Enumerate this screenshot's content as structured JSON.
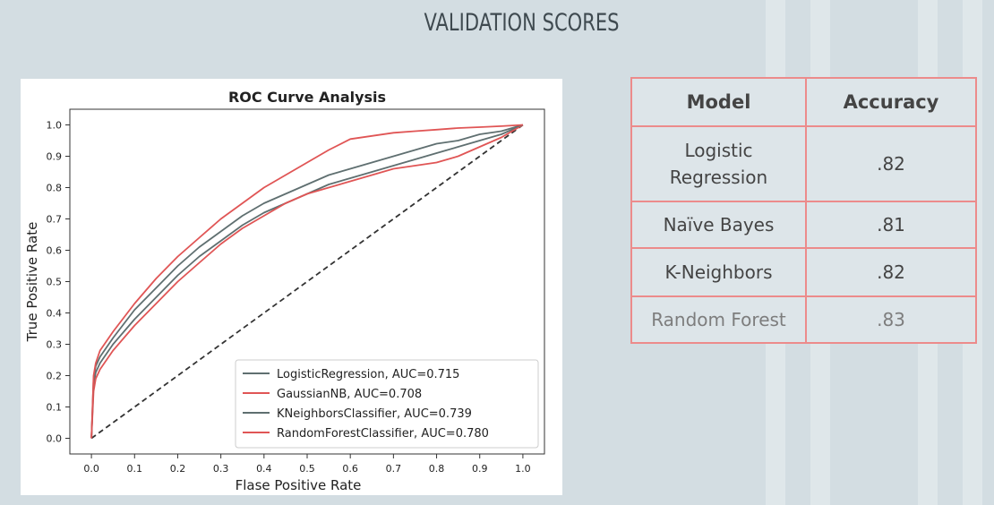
{
  "page": {
    "title": "VALIDATION SCORES"
  },
  "colors": {
    "background": "#d3dde2",
    "table_border": "#ec8b8b",
    "gray_series": "#5f6f70",
    "red_series": "#e05555"
  },
  "chart_data": {
    "type": "line",
    "title": "ROC Curve Analysis",
    "xlabel": "Flase Positive Rate",
    "ylabel": "True Positive Rate",
    "xlim": [
      -0.05,
      1.05
    ],
    "ylim": [
      -0.05,
      1.05
    ],
    "x_ticks": [
      "0.0",
      "0.1",
      "0.2",
      "0.3",
      "0.4",
      "0.5",
      "0.6",
      "0.7",
      "0.8",
      "0.9",
      "1.0"
    ],
    "y_ticks": [
      "0.0",
      "0.1",
      "0.2",
      "0.3",
      "0.4",
      "0.5",
      "0.6",
      "0.7",
      "0.8",
      "0.9",
      "1.0"
    ],
    "grid": false,
    "legend_position": "lower-right",
    "diagonal": {
      "x": [
        0,
        1
      ],
      "y": [
        0,
        1
      ],
      "style": "dashed"
    },
    "series": [
      {
        "name": "LogisticRegression, AUC=0.715",
        "color": "#5f6f70",
        "x": [
          0,
          0.005,
          0.01,
          0.02,
          0.05,
          0.1,
          0.15,
          0.2,
          0.25,
          0.3,
          0.35,
          0.4,
          0.45,
          0.5,
          0.55,
          0.6,
          0.65,
          0.7,
          0.75,
          0.8,
          0.85,
          0.9,
          0.95,
          1.0
        ],
        "y": [
          0,
          0.17,
          0.21,
          0.24,
          0.3,
          0.38,
          0.45,
          0.52,
          0.58,
          0.63,
          0.68,
          0.72,
          0.75,
          0.78,
          0.81,
          0.83,
          0.85,
          0.87,
          0.89,
          0.91,
          0.93,
          0.95,
          0.97,
          1.0
        ]
      },
      {
        "name": "GaussianNB, AUC=0.708",
        "color": "#e05555",
        "x": [
          0,
          0.005,
          0.01,
          0.02,
          0.05,
          0.1,
          0.15,
          0.2,
          0.25,
          0.3,
          0.35,
          0.4,
          0.45,
          0.5,
          0.55,
          0.6,
          0.65,
          0.7,
          0.75,
          0.8,
          0.85,
          0.9,
          0.95,
          1.0
        ],
        "y": [
          0,
          0.15,
          0.19,
          0.22,
          0.28,
          0.36,
          0.43,
          0.5,
          0.56,
          0.62,
          0.67,
          0.71,
          0.75,
          0.78,
          0.8,
          0.82,
          0.84,
          0.86,
          0.87,
          0.88,
          0.9,
          0.93,
          0.96,
          1.0
        ]
      },
      {
        "name": "KNeighborsClassifier, AUC=0.739",
        "color": "#5f6f70",
        "x": [
          0,
          0.005,
          0.01,
          0.02,
          0.05,
          0.1,
          0.15,
          0.2,
          0.25,
          0.3,
          0.35,
          0.4,
          0.45,
          0.5,
          0.55,
          0.6,
          0.65,
          0.7,
          0.75,
          0.8,
          0.85,
          0.9,
          0.95,
          1.0
        ],
        "y": [
          0,
          0.19,
          0.23,
          0.26,
          0.32,
          0.41,
          0.48,
          0.55,
          0.61,
          0.66,
          0.71,
          0.75,
          0.78,
          0.81,
          0.84,
          0.86,
          0.88,
          0.9,
          0.92,
          0.94,
          0.95,
          0.97,
          0.98,
          1.0
        ]
      },
      {
        "name": "RandomForestClassifier, AUC=0.780",
        "color": "#e05555",
        "x": [
          0,
          0.005,
          0.01,
          0.02,
          0.05,
          0.1,
          0.15,
          0.2,
          0.25,
          0.3,
          0.35,
          0.4,
          0.45,
          0.5,
          0.55,
          0.6,
          0.65,
          0.7,
          0.75,
          0.8,
          0.85,
          0.9,
          0.95,
          1.0
        ],
        "y": [
          0,
          0.2,
          0.24,
          0.28,
          0.34,
          0.43,
          0.51,
          0.58,
          0.64,
          0.7,
          0.75,
          0.8,
          0.84,
          0.88,
          0.92,
          0.955,
          0.965,
          0.975,
          0.98,
          0.985,
          0.99,
          0.993,
          0.996,
          1.0
        ]
      }
    ]
  },
  "table": {
    "headers": [
      "Model",
      "Accuracy"
    ],
    "rows": [
      [
        "Logistic\nRegression",
        ".82"
      ],
      [
        "Naïve Bayes",
        ".81"
      ],
      [
        "K-Neighbors",
        ".82"
      ],
      [
        "Random Forest",
        ".83"
      ]
    ]
  }
}
